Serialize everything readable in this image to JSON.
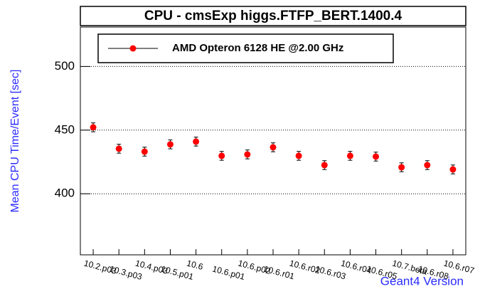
{
  "chart_data": {
    "type": "scatter",
    "title": "CPU - cmsExp higgs.FTFP_BERT.1400.4",
    "y_label": "Mean CPU Time/Event [sec]",
    "x_label": "Geant4 Version",
    "categories": [
      "10.2.p03",
      "10.3.p03",
      "10.4.p03",
      "10.5.p01",
      "10.6",
      "10.6.p01",
      "10.6.p02",
      "10.6.r01",
      "10.6.r02",
      "10.6.r03",
      "10.6.r04",
      "10.6.r05",
      "10.7.beta",
      "10.6.r08",
      "10.6.r07"
    ],
    "series": [
      {
        "name": "AMD Opteron 6128 HE @2.00 GHz",
        "color": "#ff0000",
        "values": [
          452.2,
          435.4,
          433.1,
          438.8,
          441.0,
          429.8,
          430.9,
          436.5,
          429.8,
          422.5,
          429.8,
          429.2,
          420.8,
          422.5,
          419.1
        ],
        "errors": [
          3.5,
          3.5,
          3.5,
          3.5,
          3.5,
          3.5,
          3.5,
          3.5,
          3.5,
          3.5,
          3.5,
          3.5,
          3.5,
          3.5,
          3.5
        ]
      }
    ],
    "ylim": [
      352,
      531
    ],
    "yticks": [
      400,
      450,
      500
    ],
    "grid": true,
    "legend": "top-left"
  }
}
